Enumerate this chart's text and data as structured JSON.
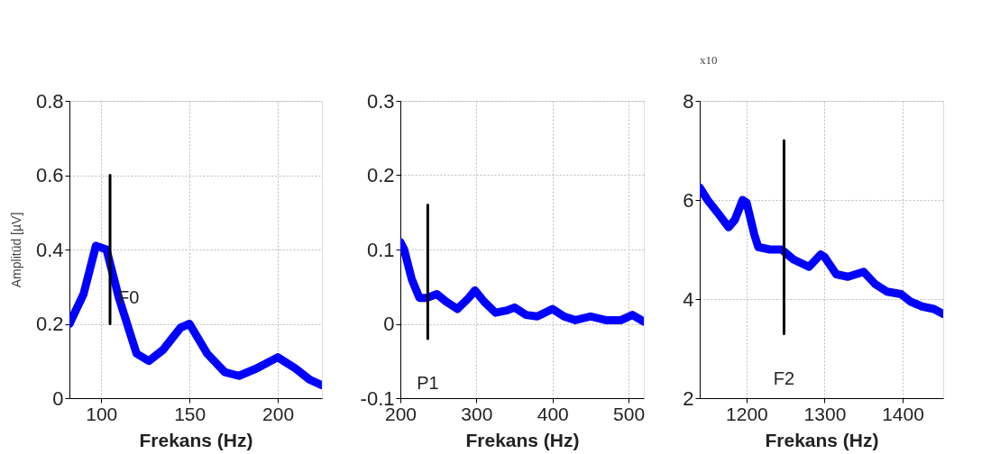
{
  "chart_data": [
    {
      "type": "line",
      "xlabel": "Frekans (Hz)",
      "ylabel": "Amplitüd  [µV]",
      "xlim": [
        82,
        225
      ],
      "ylim": [
        0,
        0.8
      ],
      "xticks": [
        100,
        150,
        200
      ],
      "yticks": [
        0,
        0.2,
        0.4,
        0.6,
        0.8
      ],
      "grid": true,
      "series": [
        {
          "color": "#0000ff",
          "x": [
            82,
            90,
            97,
            103,
            110,
            120,
            127,
            135,
            145,
            150,
            160,
            170,
            178,
            188,
            200,
            210,
            218,
            225
          ],
          "values": [
            0.2,
            0.28,
            0.41,
            0.4,
            0.27,
            0.12,
            0.1,
            0.13,
            0.19,
            0.2,
            0.12,
            0.07,
            0.06,
            0.08,
            0.11,
            0.08,
            0.05,
            0.035
          ]
        },
        {
          "color": "#000000",
          "x": [
            105,
            105
          ],
          "values": [
            0.2,
            0.6
          ]
        }
      ],
      "annotations": [
        {
          "text": "F0",
          "x": 105,
          "y": 0.27
        }
      ]
    },
    {
      "type": "line",
      "xlabel": "Frekans (Hz)",
      "xlim": [
        200,
        520
      ],
      "ylim": [
        -0.1,
        0.3
      ],
      "xticks": [
        200,
        300,
        400,
        500
      ],
      "yticks": [
        -0.1,
        0,
        0.1,
        0.2,
        0.3
      ],
      "grid": true,
      "series": [
        {
          "color": "#0000ff",
          "x": [
            200,
            205,
            215,
            225,
            235,
            248,
            260,
            275,
            290,
            298,
            310,
            325,
            340,
            350,
            365,
            380,
            400,
            415,
            430,
            450,
            470,
            490,
            505,
            520
          ],
          "values": [
            0.11,
            0.1,
            0.06,
            0.035,
            0.035,
            0.04,
            0.03,
            0.02,
            0.035,
            0.045,
            0.03,
            0.015,
            0.018,
            0.022,
            0.012,
            0.01,
            0.02,
            0.01,
            0.005,
            0.01,
            0.005,
            0.005,
            0.012,
            0.003
          ]
        },
        {
          "color": "#000000",
          "x": [
            236,
            236
          ],
          "values": [
            -0.02,
            0.16
          ]
        }
      ],
      "annotations": [
        {
          "text": "P1",
          "x": 236,
          "y": -0.02
        }
      ]
    },
    {
      "type": "line",
      "xlabel": "Frekans (Hz)",
      "xlim": [
        1140,
        1452
      ],
      "ylim": [
        2,
        8
      ],
      "xticks": [
        1200,
        1300,
        1400
      ],
      "yticks": [
        2,
        4,
        6,
        8
      ],
      "grid": true,
      "series": [
        {
          "color": "#0000ff",
          "x": [
            1140,
            1150,
            1165,
            1177,
            1185,
            1195,
            1200,
            1210,
            1215,
            1230,
            1245,
            1260,
            1280,
            1295,
            1300,
            1315,
            1330,
            1350,
            1365,
            1380,
            1398,
            1410,
            1425,
            1440,
            1452
          ],
          "values": [
            6.25,
            6.0,
            5.7,
            5.45,
            5.6,
            6.0,
            5.95,
            5.3,
            5.05,
            5.0,
            5.0,
            4.8,
            4.65,
            4.9,
            4.85,
            4.5,
            4.45,
            4.55,
            4.3,
            4.15,
            4.1,
            3.95,
            3.85,
            3.8,
            3.7
          ]
        },
        {
          "color": "#000000",
          "x": [
            1248,
            1248
          ],
          "values": [
            3.3,
            7.2
          ]
        }
      ],
      "annotations": [
        "x10",
        {
          "text": "F2",
          "x": 1248,
          "y": 3.3
        }
      ]
    }
  ]
}
